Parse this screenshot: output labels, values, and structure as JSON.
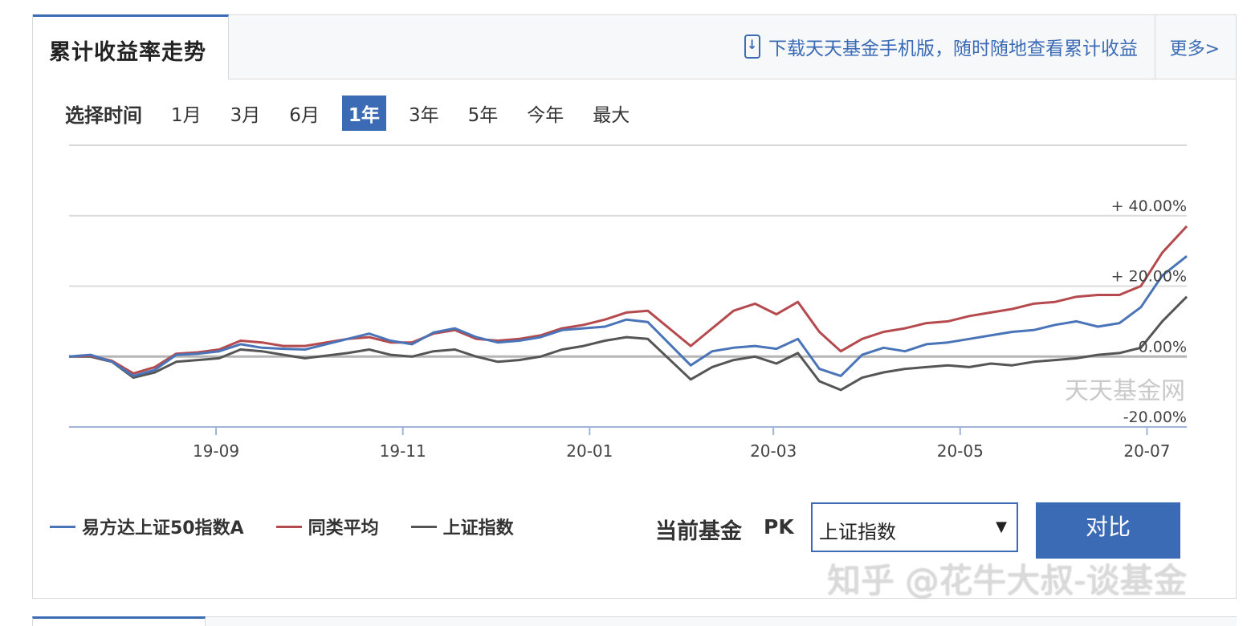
{
  "header": {
    "title": "累计收益率走势",
    "download_text": "下载天天基金手机版，随时随地查看累计收益",
    "more_label": "更多>"
  },
  "timebar": {
    "label": "选择时间",
    "options": [
      "1月",
      "3月",
      "6月",
      "1年",
      "3年",
      "5年",
      "今年",
      "最大"
    ],
    "selected": "1年"
  },
  "chart_data": {
    "type": "line",
    "x_ticks": [
      "19-09",
      "19-11",
      "20-01",
      "20-03",
      "20-05",
      "20-07"
    ],
    "y_ticks": [
      "+ 40.00%",
      "+ 20.00%",
      "0.00%",
      "-20.00%"
    ],
    "y_tick_values": [
      40,
      20,
      0,
      -20
    ],
    "ylim": [
      -20,
      60
    ],
    "x_range": [
      "2019-07-15",
      "2020-07-14"
    ],
    "grid": true,
    "watermark": "天天基金网",
    "x": [
      "2019-07-15",
      "2019-07-22",
      "2019-07-29",
      "2019-08-05",
      "2019-08-12",
      "2019-08-19",
      "2019-08-26",
      "2019-09-02",
      "2019-09-09",
      "2019-09-16",
      "2019-09-23",
      "2019-09-30",
      "2019-10-14",
      "2019-10-21",
      "2019-10-28",
      "2019-11-04",
      "2019-11-11",
      "2019-11-18",
      "2019-11-25",
      "2019-12-02",
      "2019-12-09",
      "2019-12-16",
      "2019-12-23",
      "2019-12-30",
      "2020-01-06",
      "2020-01-13",
      "2020-01-20",
      "2020-02-03",
      "2020-02-10",
      "2020-02-17",
      "2020-02-24",
      "2020-03-02",
      "2020-03-09",
      "2020-03-16",
      "2020-03-23",
      "2020-03-30",
      "2020-04-06",
      "2020-04-13",
      "2020-04-20",
      "2020-04-27",
      "2020-05-04",
      "2020-05-11",
      "2020-05-18",
      "2020-05-25",
      "2020-06-01",
      "2020-06-08",
      "2020-06-15",
      "2020-06-22",
      "2020-06-29",
      "2020-07-06",
      "2020-07-14"
    ],
    "series": [
      {
        "name": "易方达上证50指数A",
        "color": "#4a74b8",
        "values": [
          0.0,
          0.5,
          -1.5,
          -5.5,
          -3.8,
          0.5,
          0.8,
          1.5,
          3.5,
          2.5,
          2.2,
          2.0,
          5.0,
          6.5,
          4.5,
          3.5,
          6.8,
          8.0,
          5.5,
          4.0,
          4.5,
          5.5,
          7.5,
          8.0,
          8.5,
          10.5,
          9.8,
          -2.5,
          1.5,
          2.5,
          3.0,
          2.2,
          5.0,
          -3.5,
          -5.5,
          0.5,
          2.5,
          1.5,
          3.5,
          4.0,
          5.0,
          6.0,
          7.0,
          7.5,
          9.0,
          10.0,
          8.5,
          9.5,
          14.0,
          23.0,
          28.5
        ]
      },
      {
        "name": "同类平均",
        "color": "#b54a4e",
        "values": [
          0.0,
          0.2,
          -1.2,
          -4.8,
          -3.0,
          0.8,
          1.2,
          2.0,
          4.5,
          4.0,
          3.0,
          3.0,
          5.0,
          5.5,
          4.0,
          4.0,
          6.5,
          7.5,
          5.0,
          4.5,
          5.0,
          6.0,
          8.0,
          9.0,
          10.5,
          12.5,
          13.0,
          3.0,
          8.0,
          13.0,
          15.0,
          12.0,
          15.5,
          7.0,
          1.5,
          5.0,
          7.0,
          8.0,
          9.5,
          10.0,
          11.5,
          12.5,
          13.5,
          15.0,
          15.5,
          17.0,
          17.5,
          17.5,
          20.0,
          29.5,
          37.0
        ]
      },
      {
        "name": "上证指数",
        "color": "#555555",
        "values": [
          0.0,
          0.0,
          -1.5,
          -6.0,
          -4.5,
          -1.5,
          -1.0,
          -0.5,
          2.0,
          1.5,
          0.5,
          -0.5,
          1.0,
          2.0,
          0.5,
          0.0,
          1.5,
          2.0,
          0.0,
          -1.5,
          -1.0,
          0.0,
          2.0,
          3.0,
          4.5,
          5.5,
          5.0,
          -6.5,
          -3.0,
          -1.0,
          0.0,
          -2.0,
          1.0,
          -7.0,
          -9.5,
          -6.0,
          -4.5,
          -3.5,
          -3.0,
          -2.5,
          -3.0,
          -2.0,
          -2.5,
          -1.5,
          -1.0,
          -0.5,
          0.5,
          1.0,
          2.5,
          10.0,
          17.0
        ]
      }
    ]
  },
  "legend": {
    "items": [
      {
        "label": "易方达上证50指数A",
        "color": "#4a74b8"
      },
      {
        "label": "同类平均",
        "color": "#b54a4e"
      },
      {
        "label": "上证指数",
        "color": "#555555"
      }
    ]
  },
  "compare": {
    "label": "当前基金",
    "pk": "PK",
    "selected": "上证指数",
    "button": "对比"
  },
  "watermark": "知乎 @花牛大叔-谈基金"
}
